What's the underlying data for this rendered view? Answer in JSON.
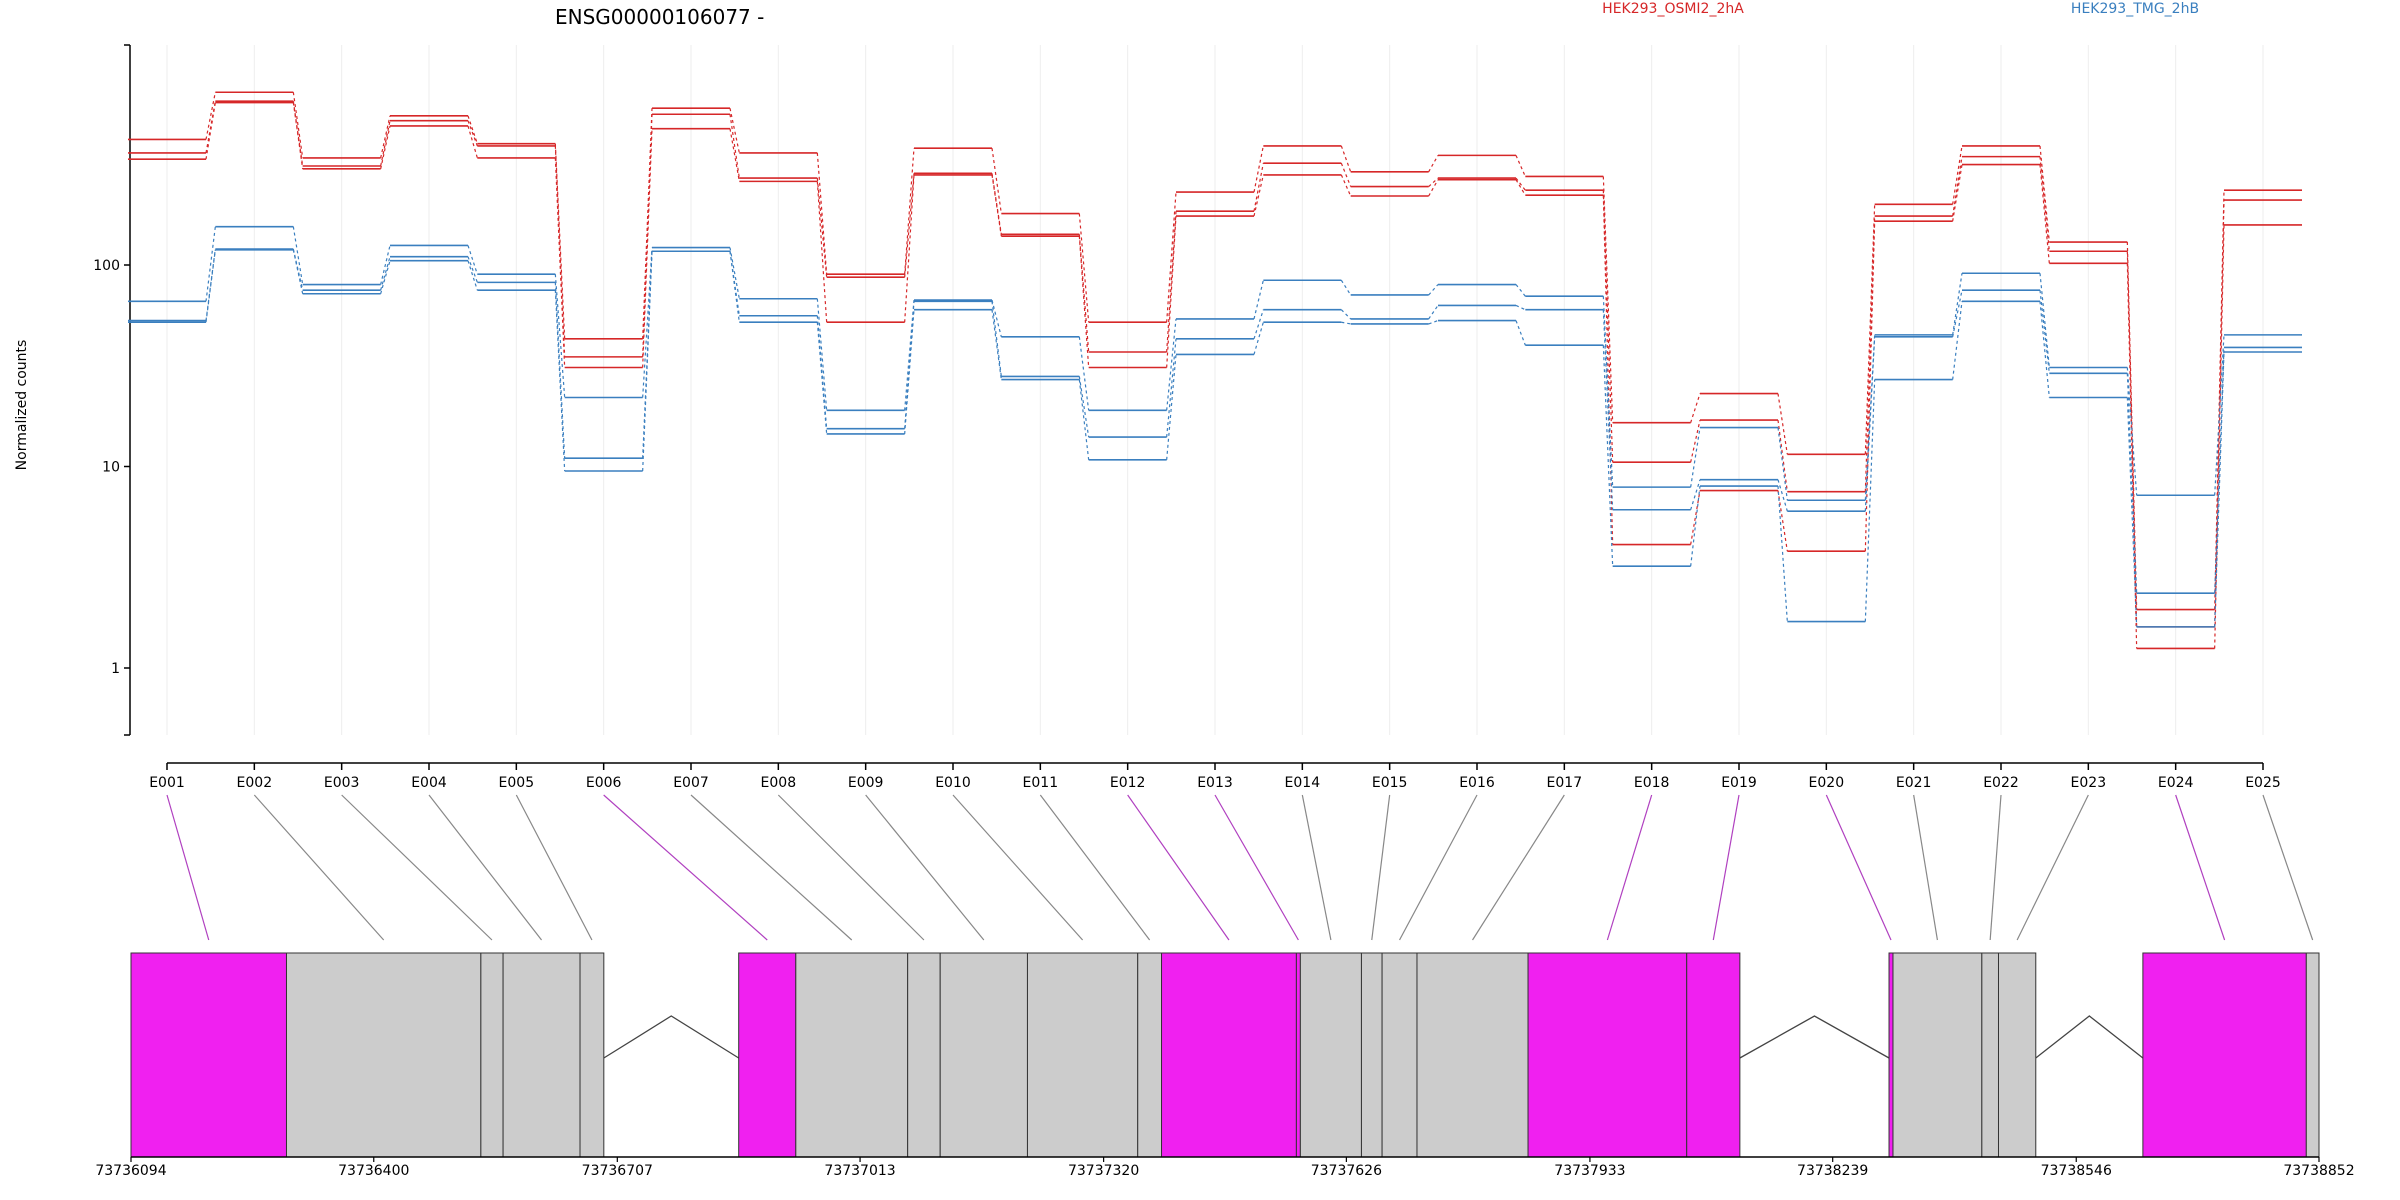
{
  "chart_data": {
    "type": "line",
    "title": "ENSG00000106077 -",
    "xlabel": "",
    "ylabel": "Normalized counts",
    "yscale": "log",
    "ylim": [
      0.35,
      800
    ],
    "yticks": [
      1,
      10,
      100
    ],
    "ytick_labels": [
      "1",
      "10",
      "100"
    ],
    "grid": "vertical-light",
    "legend_placement": "top",
    "categories": [
      "E001",
      "E002",
      "E003",
      "E004",
      "E005",
      "E006",
      "E007",
      "E008",
      "E009",
      "E010",
      "E011",
      "E012",
      "E013",
      "E014",
      "E015",
      "E016",
      "E017",
      "E018",
      "E019",
      "E020",
      "E021",
      "E022",
      "E023",
      "E024",
      "E025"
    ],
    "groups": [
      {
        "name": "HEK293_OSMI2_2hA",
        "color": "#d62728"
      },
      {
        "name": "HEK293_TMG_2hB",
        "color": "#3a7fbf"
      }
    ],
    "series": [
      {
        "group": 0,
        "values": [
          420,
          720,
          340,
          550,
          400,
          43,
          600,
          360,
          90,
          380,
          180,
          52,
          230,
          390,
          290,
          350,
          275,
          16.5,
          23,
          11.5,
          200,
          390,
          130,
          1.95,
          235
        ]
      },
      {
        "group": 0,
        "values": [
          360,
          650,
          310,
          520,
          390,
          35,
          560,
          270,
          87,
          285,
          142,
          37,
          185,
          320,
          245,
          270,
          235,
          10.5,
          17,
          7.5,
          175,
          345,
          117,
          1.6,
          210
        ]
      },
      {
        "group": 0,
        "values": [
          335,
          640,
          300,
          490,
          340,
          31,
          475,
          260,
          52,
          280,
          139,
          31,
          175,
          280,
          220,
          265,
          222,
          4.1,
          7.6,
          3.8,
          165,
          315,
          102,
          1.25,
          158
        ]
      },
      {
        "group": 1,
        "values": [
          66,
          155,
          80,
          125,
          90,
          22,
          122,
          68,
          19,
          67,
          44,
          19,
          54,
          84,
          71,
          80,
          70,
          7.9,
          15.6,
          6.8,
          45,
          91,
          31,
          7.2,
          45
        ]
      },
      {
        "group": 1,
        "values": [
          53,
          120,
          75,
          110,
          82,
          11,
          117,
          56,
          15.4,
          66,
          28,
          14,
          43,
          60,
          54,
          63,
          60,
          6.1,
          8.6,
          6.0,
          44,
          75,
          29,
          2.35,
          39
        ]
      },
      {
        "group": 1,
        "values": [
          52,
          119,
          72,
          105,
          75,
          9.5,
          117,
          52,
          14.5,
          60,
          27,
          10.8,
          36,
          52,
          51,
          53,
          40,
          3.2,
          8.0,
          1.7,
          27,
          66,
          22,
          1.6,
          37
        ]
      }
    ],
    "gene_model": {
      "coordinate_ticks": [
        "73736094",
        "73736400",
        "73736707",
        "73737013",
        "73737320",
        "73737626",
        "73737933",
        "73738239",
        "73738546",
        "73738852"
      ],
      "exons": [
        {
          "id": "E001",
          "type": "differential"
        },
        {
          "id": "E002",
          "type": "normal"
        },
        {
          "id": "E003",
          "type": "normal"
        },
        {
          "id": "E004",
          "type": "normal"
        },
        {
          "id": "E005",
          "type": "normal"
        },
        {
          "id": "E006",
          "type": "differential"
        },
        {
          "id": "E007",
          "type": "normal"
        },
        {
          "id": "E008",
          "type": "normal"
        },
        {
          "id": "E009",
          "type": "normal"
        },
        {
          "id": "E010",
          "type": "normal"
        },
        {
          "id": "E011",
          "type": "normal"
        },
        {
          "id": "E012",
          "type": "differential"
        },
        {
          "id": "E013",
          "type": "differential"
        },
        {
          "id": "E014",
          "type": "normal"
        },
        {
          "id": "E015",
          "type": "normal"
        },
        {
          "id": "E016",
          "type": "normal"
        },
        {
          "id": "E017",
          "type": "normal"
        },
        {
          "id": "E018",
          "type": "differential"
        },
        {
          "id": "E019",
          "type": "differential"
        },
        {
          "id": "E020",
          "type": "differential"
        },
        {
          "id": "E021",
          "type": "normal"
        },
        {
          "id": "E022",
          "type": "normal"
        },
        {
          "id": "E023",
          "type": "normal"
        },
        {
          "id": "E024",
          "type": "differential"
        },
        {
          "id": "E025",
          "type": "normal"
        }
      ],
      "colors": {
        "differential": "#f020f0",
        "normal": "#cccccc",
        "outline": "#333333"
      }
    }
  }
}
